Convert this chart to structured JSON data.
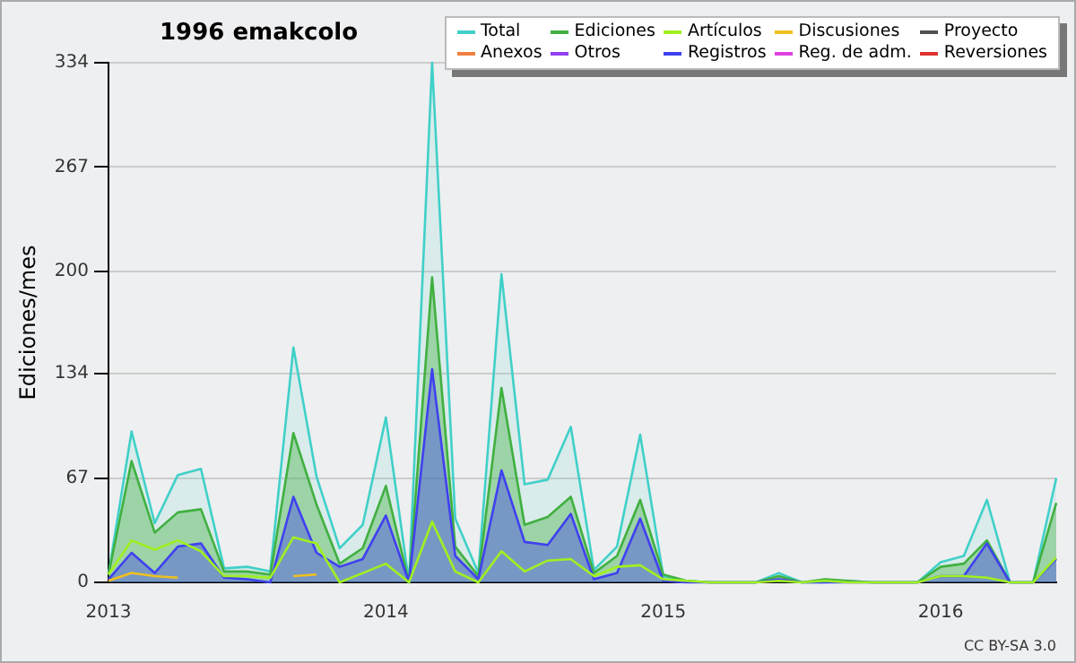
{
  "chart_data": {
    "type": "area",
    "title": "1996 emakcolo",
    "ylabel": "Ediciones/mes",
    "x": [
      "2013-01",
      "2013-02",
      "2013-03",
      "2013-04",
      "2013-05",
      "2013-06",
      "2013-07",
      "2013-08",
      "2013-09",
      "2013-10",
      "2013-11",
      "2013-12",
      "2014-01",
      "2014-02",
      "2014-03",
      "2014-04",
      "2014-05",
      "2014-06",
      "2014-07",
      "2014-08",
      "2014-09",
      "2014-10",
      "2014-11",
      "2014-12",
      "2015-01",
      "2015-02",
      "2015-03",
      "2015-04",
      "2015-05",
      "2015-06",
      "2015-07",
      "2015-08",
      "2015-09",
      "2015-10",
      "2015-11",
      "2015-12",
      "2016-01",
      "2016-02",
      "2016-03",
      "2016-04",
      "2016-05",
      "2016-06"
    ],
    "series": [
      {
        "name": "Total",
        "type": "area",
        "color": "#40d0c8",
        "values": [
          5,
          97,
          38,
          69,
          73,
          9,
          10,
          7,
          151,
          68,
          22,
          37,
          106,
          0,
          334,
          41,
          6,
          198,
          63,
          66,
          100,
          8,
          23,
          95,
          4,
          1,
          0,
          0,
          0,
          6,
          0,
          0,
          1,
          0,
          0,
          0,
          13,
          17,
          53,
          0,
          0,
          67
        ]
      },
      {
        "name": "Ediciones",
        "type": "area",
        "color": "#40b040",
        "values": [
          5,
          78,
          32,
          45,
          47,
          7,
          7,
          5,
          96,
          50,
          12,
          22,
          62,
          0,
          196,
          23,
          4,
          125,
          37,
          42,
          55,
          6,
          17,
          53,
          5,
          1,
          0,
          0,
          0,
          4,
          0,
          2,
          1,
          0,
          0,
          0,
          10,
          12,
          27,
          0,
          0,
          51
        ]
      },
      {
        "name": "Artículos",
        "type": "line",
        "color": "#a0f020",
        "values": [
          5,
          27,
          21,
          27,
          20,
          4,
          4,
          3,
          29,
          25,
          0,
          6,
          12,
          0,
          39,
          7,
          0,
          20,
          7,
          14,
          15,
          4,
          10,
          11,
          2,
          1,
          0,
          0,
          0,
          1,
          0,
          1,
          0,
          0,
          0,
          0,
          4,
          4,
          3,
          0,
          0,
          16
        ]
      },
      {
        "name": "Discusiones",
        "type": "line",
        "color": "#f0c020",
        "values": [
          1,
          6,
          4,
          3,
          null,
          null,
          null,
          null,
          4,
          5,
          null,
          null,
          null,
          null,
          null,
          null,
          null,
          null,
          null,
          null,
          null,
          null,
          null,
          null,
          null,
          null,
          null,
          null,
          null,
          null,
          null,
          null,
          null,
          null,
          null,
          null,
          null,
          null,
          null,
          null,
          null,
          null
        ]
      },
      {
        "name": "Proyecto",
        "type": "line",
        "color": "#505050",
        "values": [
          null,
          null,
          null,
          null,
          null,
          null,
          null,
          null,
          null,
          null,
          null,
          null,
          null,
          null,
          null,
          null,
          null,
          null,
          null,
          null,
          null,
          null,
          null,
          null,
          null,
          null,
          null,
          null,
          null,
          null,
          null,
          null,
          null,
          null,
          null,
          null,
          null,
          null,
          null,
          null,
          null,
          null
        ]
      },
      {
        "name": "Anexos",
        "type": "line",
        "color": "#f08040",
        "values": [
          null,
          null,
          null,
          null,
          null,
          null,
          null,
          null,
          null,
          null,
          null,
          null,
          null,
          null,
          null,
          null,
          null,
          null,
          null,
          null,
          null,
          null,
          null,
          null,
          null,
          null,
          null,
          null,
          null,
          null,
          null,
          null,
          null,
          null,
          null,
          null,
          null,
          null,
          null,
          null,
          null,
          null
        ]
      },
      {
        "name": "Otros",
        "type": "line",
        "color": "#9040f0",
        "values": [
          null,
          null,
          null,
          null,
          null,
          null,
          null,
          null,
          null,
          null,
          null,
          null,
          null,
          null,
          null,
          null,
          null,
          null,
          null,
          null,
          null,
          null,
          null,
          null,
          null,
          null,
          null,
          null,
          null,
          null,
          null,
          null,
          null,
          null,
          null,
          null,
          null,
          null,
          null,
          null,
          null,
          null
        ]
      },
      {
        "name": "Registros",
        "type": "area",
        "color": "#4040f0",
        "values": [
          2,
          19,
          6,
          23,
          25,
          3,
          2,
          0,
          55,
          19,
          10,
          15,
          43,
          0,
          137,
          17,
          2,
          72,
          26,
          24,
          44,
          2,
          6,
          41,
          1,
          0,
          0,
          0,
          0,
          2,
          0,
          0,
          0,
          0,
          0,
          0,
          4,
          4,
          25,
          0,
          0,
          15
        ]
      },
      {
        "name": "Reg. de adm.",
        "type": "line",
        "color": "#e040e0",
        "values": [
          null,
          null,
          null,
          null,
          null,
          null,
          null,
          null,
          null,
          null,
          null,
          null,
          null,
          null,
          null,
          null,
          null,
          null,
          null,
          null,
          null,
          null,
          null,
          null,
          null,
          null,
          null,
          null,
          null,
          null,
          null,
          null,
          null,
          null,
          null,
          null,
          null,
          null,
          null,
          null,
          null,
          null
        ]
      },
      {
        "name": "Reversiones",
        "type": "line",
        "color": "#e03030",
        "values": [
          null,
          null,
          null,
          null,
          null,
          null,
          null,
          null,
          null,
          null,
          null,
          null,
          null,
          null,
          null,
          null,
          null,
          null,
          null,
          null,
          null,
          null,
          null,
          null,
          null,
          null,
          null,
          null,
          null,
          null,
          null,
          null,
          null,
          null,
          null,
          null,
          null,
          null,
          null,
          null,
          null,
          null
        ]
      }
    ],
    "xlim": [
      "2013-01",
      "2016-06"
    ],
    "xticks": [
      "2013",
      "2014",
      "2015",
      "2016"
    ],
    "ylim": [
      0,
      334
    ],
    "yticks": [
      0,
      67,
      134,
      200,
      267,
      334
    ],
    "grid": "y",
    "legend": "top right",
    "marker": "none",
    "line_style": "solid",
    "annotations": [
      "CC BY-SA 3.0"
    ]
  }
}
